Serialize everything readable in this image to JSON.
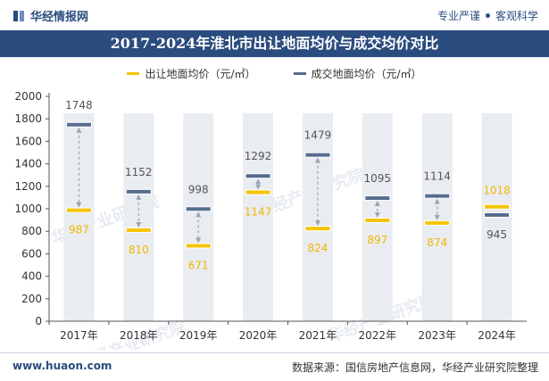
{
  "header": {
    "brand": "华经情报网",
    "slogan_left": "专业严谨",
    "slogan_right": "客观科学"
  },
  "footer": {
    "site": "www.huaon.com",
    "source": "数据来源：国信房地产信息网，华经产业研究院整理"
  },
  "colors": {
    "primary": "#2b4c7e",
    "listing": "#f5c400",
    "deal": "#566c8e",
    "column": "#e9ecf1",
    "connector": "#9aa3b2",
    "label": "#333333"
  },
  "chart_data": {
    "type": "bar",
    "title": "2017-2024年淮北市出让地面均价与成交均价对比",
    "categories": [
      "2017年",
      "2018年",
      "2019年",
      "2020年",
      "2021年",
      "2022年",
      "2023年",
      "2024年"
    ],
    "series": [
      {
        "name": "出让地面均价（元/㎡）",
        "values": [
          987,
          810,
          671,
          1147,
          824,
          897,
          874,
          1018
        ]
      },
      {
        "name": "成交地面均价（元/㎡）",
        "values": [
          1748,
          1152,
          998,
          1292,
          1479,
          1095,
          1114,
          945
        ]
      }
    ],
    "ylim": [
      0,
      2000
    ],
    "yticks": [
      0,
      200,
      400,
      600,
      800,
      1000,
      1200,
      1400,
      1600,
      1800,
      2000
    ],
    "xlabel": "",
    "ylabel": ""
  },
  "watermark": "华经产业研究院"
}
